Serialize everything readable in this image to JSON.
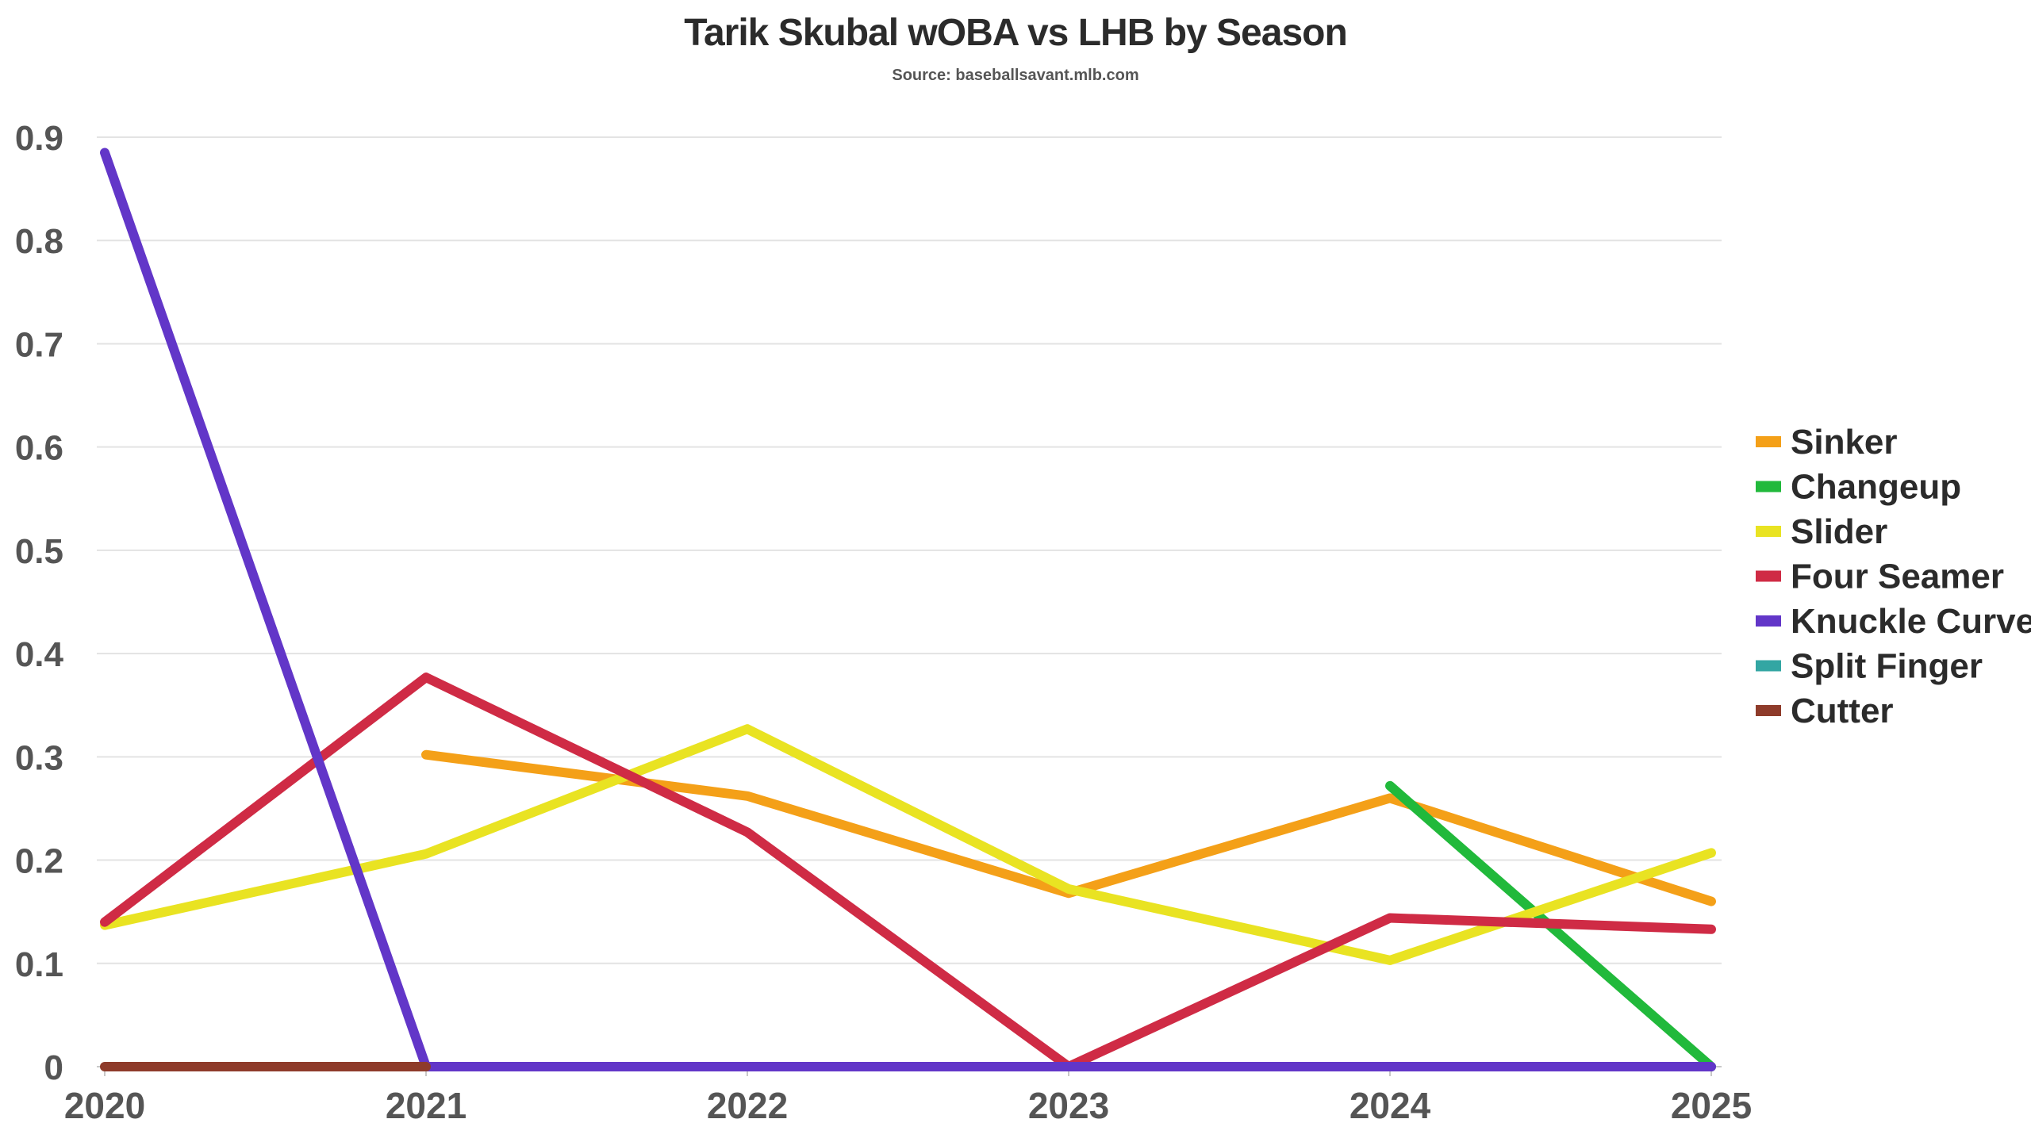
{
  "chart_data": {
    "type": "line",
    "title": "Tarik Skubal wOBA vs LHB by Season",
    "subtitle": "Source: baseballsavant.mlb.com",
    "xlabel": "",
    "ylabel": "",
    "x": [
      "2020",
      "2021",
      "2022",
      "2023",
      "2024",
      "2025"
    ],
    "ylim": [
      0,
      0.9
    ],
    "yticks": [
      "0",
      "0.1",
      "0.2",
      "0.3",
      "0.4",
      "0.5",
      "0.6",
      "0.7",
      "0.8",
      "0.9"
    ],
    "grid": true,
    "legend_position": "right",
    "series": [
      {
        "name": "Sinker",
        "color": "#F4A018",
        "values": [
          null,
          0.302,
          0.262,
          0.168,
          0.26,
          0.16
        ]
      },
      {
        "name": "Changeup",
        "color": "#21B93B",
        "values": [
          null,
          null,
          null,
          null,
          0.272,
          0.0
        ]
      },
      {
        "name": "Slider",
        "color": "#E9E322",
        "values": [
          0.137,
          0.206,
          0.327,
          0.172,
          0.103,
          0.207
        ]
      },
      {
        "name": "Four Seamer",
        "color": "#CF2B45",
        "values": [
          0.14,
          0.377,
          0.227,
          0.0,
          0.144,
          0.133
        ]
      },
      {
        "name": "Knuckle Curve",
        "color": "#6236C8",
        "values": [
          0.885,
          0.0,
          0.0,
          0.0,
          0.0,
          0.0
        ]
      },
      {
        "name": "Split Finger",
        "color": "#33A6A3",
        "values": [
          null,
          null,
          null,
          null,
          null,
          null
        ]
      },
      {
        "name": "Cutter",
        "color": "#8E3B2A",
        "values": [
          0.0,
          0.0,
          null,
          null,
          null,
          null
        ]
      }
    ]
  }
}
